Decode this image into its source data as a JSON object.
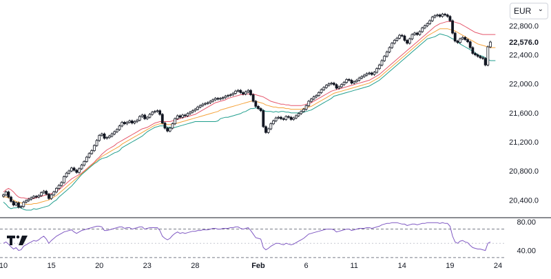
{
  "currency": {
    "selected": "EUR",
    "chevron_icon": "chevron-down-icon"
  },
  "logo_icon": "tradingview-logo-icon",
  "colors": {
    "upper_band": "#e5566b",
    "middle_band": "#f5a23a",
    "lower_band": "#1f9e8d",
    "rsi_line": "#7e57c2",
    "candle": "#131722",
    "pane_divider": "#131722",
    "rsi_bounds": "#787b86"
  },
  "chart_data": [
    {
      "type": "candlestick",
      "title": "",
      "last_price_label": "22,576.0",
      "last_price": 22576,
      "ylim": [
        20260,
        23080
      ],
      "yticks": [
        {
          "value": 20400,
          "label": "20,400.0"
        },
        {
          "value": 20800,
          "label": "20,800.0"
        },
        {
          "value": 21200,
          "label": "21,200.0"
        },
        {
          "value": 21600,
          "label": "21,600.0"
        },
        {
          "value": 22000,
          "label": "22,000.0"
        },
        {
          "value": 22400,
          "label": "22,400.0"
        },
        {
          "value": 22800,
          "label": "22,800.0"
        }
      ],
      "xticks": [
        {
          "index": 0,
          "label": "10"
        },
        {
          "index": 19,
          "label": "15"
        },
        {
          "index": 38,
          "label": "20"
        },
        {
          "index": 57,
          "label": "23"
        },
        {
          "index": 76,
          "label": "28"
        },
        {
          "index": 101,
          "label": "Feb",
          "bold": true
        },
        {
          "index": 120,
          "label": "6"
        },
        {
          "index": 139,
          "label": "11"
        },
        {
          "index": 158,
          "label": "14"
        },
        {
          "index": 177,
          "label": "19"
        },
        {
          "index": 196,
          "label": "24"
        }
      ],
      "closes": [
        20470,
        20510,
        20440,
        20380,
        20330,
        20360,
        20300,
        20310,
        20370,
        20390,
        20410,
        20430,
        20450,
        20440,
        20460,
        20500,
        20520,
        20480,
        20420,
        20470,
        20510,
        20560,
        20600,
        20640,
        20720,
        20770,
        20800,
        20840,
        20810,
        20780,
        20830,
        20880,
        20930,
        20990,
        21040,
        21080,
        21150,
        21220,
        21290,
        21310,
        21250,
        21260,
        21280,
        21310,
        21340,
        21370,
        21420,
        21470,
        21450,
        21470,
        21490,
        21460,
        21480,
        21500,
        21550,
        21570,
        21520,
        21540,
        21580,
        21610,
        21620,
        21630,
        21580,
        21460,
        21390,
        21350,
        21390,
        21450,
        21520,
        21560,
        21540,
        21570,
        21560,
        21590,
        21610,
        21630,
        21650,
        21680,
        21700,
        21720,
        21730,
        21740,
        21760,
        21780,
        21800,
        21790,
        21800,
        21810,
        21830,
        21840,
        21850,
        21870,
        21900,
        21910,
        21880,
        21860,
        21890,
        21910,
        21850,
        21760,
        21690,
        21660,
        21630,
        21410,
        21330,
        21380,
        21450,
        21490,
        21530,
        21540,
        21520,
        21510,
        21550,
        21540,
        21510,
        21530,
        21560,
        21590,
        21620,
        21650,
        21700,
        21760,
        21790,
        21820,
        21840,
        21880,
        21920,
        21950,
        21980,
        22000,
        22010,
        21990,
        21940,
        21960,
        21990,
        22020,
        22060,
        22050,
        22010,
        22030,
        22050,
        22080,
        22100,
        22120,
        22140,
        22150,
        22130,
        22160,
        22210,
        22260,
        22320,
        22380,
        22440,
        22500,
        22560,
        22600,
        22630,
        22670,
        22660,
        22600,
        22560,
        22620,
        22680,
        22700,
        22680,
        22720,
        22770,
        22800,
        22830,
        22870,
        22920,
        22940,
        22950,
        22930,
        22960,
        22950,
        22930,
        22870,
        22700,
        22590,
        22570,
        22620,
        22640,
        22610,
        22580,
        22500,
        22420,
        22400,
        22380,
        22360,
        22350,
        22260,
        22510,
        22576
      ],
      "series": [
        {
          "name": "",
          "values": [
            20510,
            20540,
            20560,
            20540,
            20510,
            20470,
            20440,
            20430,
            20430,
            20420,
            20420,
            20420,
            20420,
            20430,
            20440,
            20450,
            20460,
            20470,
            20480,
            20490,
            20500,
            20520,
            20540,
            20570,
            20600,
            20630,
            20660,
            20690,
            20710,
            20730,
            20750,
            20770,
            20800,
            20830,
            20860,
            20890,
            20920,
            20960,
            20990,
            21030,
            21060,
            21090,
            21110,
            21130,
            21150,
            21180,
            21200,
            21220,
            21240,
            21260,
            21280,
            21300,
            21320,
            21340,
            21360,
            21380,
            21390,
            21400,
            21420,
            21440,
            21460,
            21470,
            21480,
            21480,
            21480,
            21480,
            21480,
            21490,
            21500,
            21510,
            21520,
            21530,
            21540,
            21550,
            21560,
            21570,
            21580,
            21600,
            21620,
            21640,
            21660,
            21680,
            21700,
            21720,
            21740,
            21750,
            21760,
            21770,
            21780,
            21800,
            21810,
            21820,
            21830,
            21840,
            21850,
            21850,
            21860,
            21860,
            21860,
            21860,
            21850,
            21840,
            21830,
            21820,
            21800,
            21780,
            21760,
            21750,
            21740,
            21730,
            21720,
            21720,
            21710,
            21710,
            21700,
            21700,
            21700,
            21700,
            21700,
            21710,
            21720,
            21730,
            21740,
            21760,
            21780,
            21800,
            21820,
            21840,
            21860,
            21880,
            21900,
            21910,
            21920,
            21930,
            21940,
            21950,
            21960,
            21970,
            21980,
            21990,
            22000,
            22010,
            22020,
            22030,
            22040,
            22050,
            22070,
            22090,
            22110,
            22130,
            22160,
            22190,
            22220,
            22250,
            22280,
            22310,
            22340,
            22370,
            22400,
            22430,
            22460,
            22490,
            22520,
            22550,
            22580,
            22610,
            22640,
            22670,
            22700,
            22730,
            22760,
            22790,
            22810,
            22830,
            22840,
            22850,
            22860,
            22860,
            22860,
            22850,
            22840,
            22830,
            22810,
            22790,
            22770,
            22750,
            22730,
            22710,
            22700,
            22690,
            22680,
            22680,
            22680,
            22680,
            22680,
            22680
          ]
        },
        {
          "name": "",
          "values": [
            20440,
            20440,
            20430,
            20410,
            20400,
            20380,
            20370,
            20360,
            20350,
            20340,
            20340,
            20340,
            20350,
            20350,
            20360,
            20370,
            20380,
            20390,
            20400,
            20420,
            20440,
            20460,
            20490,
            20520,
            20550,
            20580,
            20610,
            20640,
            20670,
            20700,
            20730,
            20760,
            20790,
            20820,
            20850,
            20880,
            20910,
            20940,
            20970,
            21000,
            21020,
            21040,
            21060,
            21080,
            21100,
            21120,
            21140,
            21170,
            21190,
            21210,
            21230,
            21250,
            21270,
            21290,
            21310,
            21330,
            21350,
            21370,
            21390,
            21410,
            21430,
            21440,
            21450,
            21450,
            21450,
            21440,
            21440,
            21440,
            21450,
            21460,
            21470,
            21480,
            21490,
            21500,
            21510,
            21520,
            21530,
            21540,
            21550,
            21560,
            21570,
            21580,
            21590,
            21600,
            21610,
            21620,
            21640,
            21650,
            21660,
            21670,
            21680,
            21690,
            21700,
            21710,
            21720,
            21730,
            21740,
            21750,
            21760,
            21760,
            21760,
            21750,
            21740,
            21730,
            21710,
            21700,
            21690,
            21680,
            21680,
            21670,
            21670,
            21670,
            21660,
            21660,
            21650,
            21650,
            21650,
            21650,
            21650,
            21660,
            21670,
            21680,
            21690,
            21710,
            21730,
            21750,
            21770,
            21790,
            21810,
            21830,
            21850,
            21870,
            21880,
            21890,
            21900,
            21910,
            21920,
            21930,
            21940,
            21950,
            21960,
            21970,
            21980,
            21990,
            22000,
            22010,
            22030,
            22050,
            22070,
            22090,
            22120,
            22150,
            22180,
            22210,
            22240,
            22270,
            22300,
            22330,
            22360,
            22390,
            22420,
            22450,
            22480,
            22510,
            22540,
            22570,
            22600,
            22630,
            22660,
            22680,
            22700,
            22720,
            22740,
            22760,
            22760,
            22760,
            22760,
            22750,
            22740,
            22730,
            22710,
            22690,
            22670,
            22650,
            22630,
            22610,
            22590,
            22570,
            22550,
            22540,
            22530,
            22520,
            22510,
            22500,
            22500,
            22500
          ]
        },
        {
          "name": "",
          "values": [
            20370,
            20340,
            20300,
            20280,
            20290,
            20290,
            20300,
            20290,
            20270,
            20260,
            20260,
            20260,
            20280,
            20270,
            20280,
            20290,
            20300,
            20310,
            20320,
            20350,
            20380,
            20400,
            20440,
            20470,
            20500,
            20530,
            20560,
            20590,
            20630,
            20670,
            20710,
            20750,
            20780,
            20810,
            20840,
            20870,
            20900,
            20920,
            20950,
            20970,
            20980,
            20990,
            21010,
            21030,
            21050,
            21060,
            21080,
            21120,
            21140,
            21160,
            21180,
            21200,
            21220,
            21240,
            21260,
            21280,
            21310,
            21340,
            21360,
            21380,
            21400,
            21410,
            21420,
            21420,
            21420,
            21400,
            21400,
            21390,
            21400,
            21410,
            21420,
            21430,
            21440,
            21450,
            21460,
            21470,
            21480,
            21480,
            21480,
            21480,
            21480,
            21480,
            21480,
            21480,
            21480,
            21490,
            21520,
            21530,
            21540,
            21540,
            21550,
            21560,
            21570,
            21580,
            21590,
            21610,
            21620,
            21640,
            21660,
            21660,
            21670,
            21660,
            21650,
            21640,
            21620,
            21620,
            21620,
            21610,
            21620,
            21610,
            21620,
            21620,
            21610,
            21610,
            21600,
            21600,
            21600,
            21600,
            21600,
            21610,
            21620,
            21630,
            21640,
            21660,
            21680,
            21700,
            21720,
            21740,
            21760,
            21780,
            21800,
            21830,
            21840,
            21850,
            21860,
            21870,
            21880,
            21890,
            21900,
            21910,
            21920,
            21930,
            21940,
            21950,
            21960,
            21970,
            21990,
            22010,
            22030,
            22050,
            22080,
            22110,
            22140,
            22170,
            22200,
            22230,
            22260,
            22290,
            22320,
            22350,
            22380,
            22410,
            22440,
            22470,
            22500,
            22530,
            22560,
            22590,
            22620,
            22630,
            22640,
            22650,
            22670,
            22690,
            22680,
            22670,
            22660,
            22640,
            22620,
            22610,
            22580,
            22550,
            22530,
            22510,
            22490,
            22470,
            22450,
            22430,
            22400,
            22390,
            22380,
            22360,
            22340,
            22320,
            22320,
            22320
          ]
        }
      ]
    },
    {
      "type": "line",
      "title": "",
      "ylim": [
        28,
        86
      ],
      "upper_bound": 70,
      "lower_bound": 30,
      "yticks": [
        {
          "value": 80,
          "label": "80.00"
        },
        {
          "value": 40,
          "label": "40.00"
        }
      ],
      "values": [
        50,
        52,
        49,
        45,
        42,
        44,
        40,
        41,
        46,
        48,
        50,
        52,
        54,
        53,
        55,
        58,
        60,
        56,
        50,
        54,
        57,
        60,
        62,
        64,
        66,
        67,
        68,
        69,
        66,
        64,
        66,
        68,
        69,
        70,
        71,
        72,
        73,
        74,
        74,
        73,
        68,
        68,
        69,
        70,
        71,
        72,
        73,
        73,
        71,
        72,
        72,
        70,
        71,
        72,
        73,
        73,
        70,
        71,
        72,
        72,
        72,
        72,
        68,
        60,
        57,
        55,
        57,
        61,
        64,
        66,
        64,
        65,
        64,
        65,
        66,
        67,
        67,
        68,
        68,
        69,
        69,
        69,
        70,
        71,
        71,
        70,
        70,
        71,
        71,
        71,
        72,
        72,
        73,
        73,
        71,
        70,
        71,
        72,
        68,
        63,
        58,
        57,
        56,
        44,
        41,
        43,
        46,
        48,
        50,
        50,
        49,
        48,
        50,
        49,
        48,
        49,
        51,
        53,
        55,
        57,
        60,
        63,
        64,
        65,
        66,
        67,
        68,
        69,
        70,
        70,
        70,
        69,
        66,
        67,
        68,
        69,
        70,
        70,
        68,
        69,
        70,
        71,
        71,
        71,
        72,
        72,
        71,
        72,
        73,
        74,
        76,
        77,
        78,
        78,
        79,
        79,
        79,
        78,
        77,
        77,
        75,
        76,
        77,
        77,
        76,
        77,
        78,
        78,
        79,
        79,
        79,
        79,
        79,
        78,
        79,
        78,
        78,
        74,
        60,
        52,
        50,
        53,
        54,
        52,
        51,
        47,
        44,
        43,
        42,
        42,
        41,
        40,
        50,
        52
      ]
    }
  ]
}
